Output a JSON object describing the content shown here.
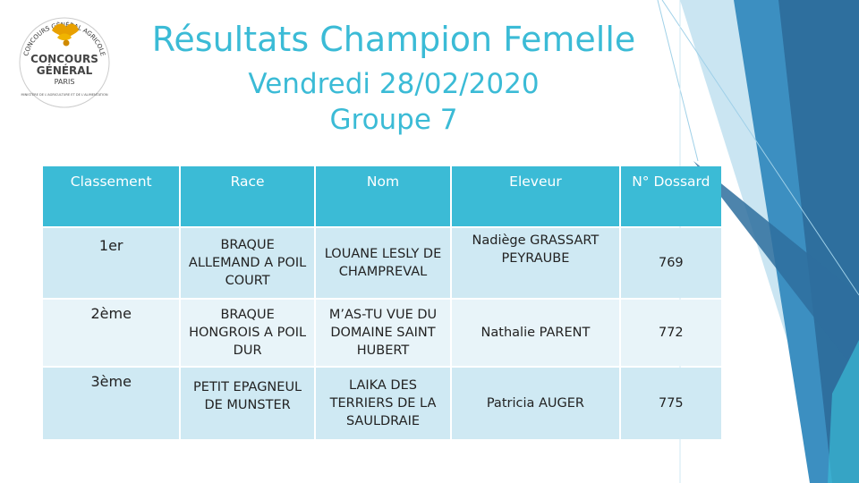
{
  "logo": {
    "arc_text": "CONCOURS GÉNÉRAL AGRICOLE",
    "main_line1": "CONCOURS",
    "main_line2": "GÉNÉRAL",
    "main_line3": "PARIS",
    "side_text": "MINISTÈRE DE L'AGRICULTURE ET DE L'ALIMENTATION"
  },
  "header": {
    "title": "Résultats Champion Femelle",
    "date": "Vendredi 28/02/2020",
    "group": "Groupe 7"
  },
  "table": {
    "columns": [
      "Classement",
      "Race",
      "Nom",
      "Eleveur",
      "N° Dossard"
    ],
    "rows": [
      {
        "rank": "1er",
        "race": "BRAQUE ALLEMAND A POIL COURT",
        "nom": "LOUANE LESLY DE CHAMPREVAL",
        "eleveur": "Nadiège GRASSART PEYRAUBE",
        "dossard": "769"
      },
      {
        "rank": "2ème",
        "race": "BRAQUE HONGROIS A POIL DUR",
        "nom": "M’AS-TU VUE DU DOMAINE SAINT HUBERT",
        "eleveur": "Nathalie PARENT",
        "dossard": "772"
      },
      {
        "rank": "3ème",
        "race": "PETIT EPAGNEUL DE MUNSTER",
        "nom": "LAIKA DES TERRIERS DE LA SAULDRAIE",
        "eleveur": "Patricia AUGER",
        "dossard": "775"
      }
    ]
  },
  "colors": {
    "accent": "#3bbbd6",
    "header_fill": "#3bbbd6",
    "row_dark": "#cfe9f3",
    "row_light": "#e8f4f9",
    "deco_dark": "#2e6f9e",
    "deco_mid": "#3c8fc1",
    "deco_light": "#9fd0e8"
  }
}
